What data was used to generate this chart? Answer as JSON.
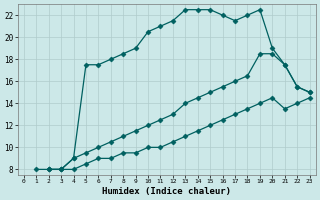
{
  "xlabel": "Humidex (Indice chaleur)",
  "ylabel": "",
  "bg_color": "#cce8e8",
  "grid_color": "#b8d8d8",
  "line_color": "#006060",
  "xlim": [
    -0.5,
    23.5
  ],
  "ylim": [
    7.5,
    23
  ],
  "xticks": [
    0,
    1,
    2,
    3,
    4,
    5,
    6,
    7,
    8,
    9,
    10,
    11,
    12,
    13,
    14,
    15,
    16,
    17,
    18,
    19,
    20,
    21,
    22,
    23
  ],
  "yticks": [
    8,
    10,
    12,
    14,
    16,
    18,
    20,
    22
  ],
  "line1_x": [
    1,
    2,
    3,
    4,
    5,
    6,
    7,
    8,
    9,
    10,
    11,
    12,
    13,
    14,
    15,
    16,
    17,
    18,
    19,
    20,
    21,
    22,
    23
  ],
  "line1_y": [
    8,
    8,
    8,
    9,
    17.5,
    17.5,
    18,
    18.5,
    19,
    20.5,
    21,
    21.5,
    22.5,
    22.5,
    22.5,
    22,
    21.5,
    22,
    22.5,
    19,
    17.5,
    15.5,
    15
  ],
  "line2_x": [
    2,
    3,
    4,
    5,
    6,
    7,
    8,
    9,
    10,
    11,
    12,
    13,
    14,
    15,
    16,
    17,
    18,
    19,
    20,
    21,
    22,
    23
  ],
  "line2_y": [
    8,
    8,
    9,
    9.5,
    10,
    10.5,
    11,
    11.5,
    12,
    12.5,
    13,
    14,
    14.5,
    15,
    15.5,
    16,
    16.5,
    18.5,
    18.5,
    17.5,
    15.5,
    15
  ],
  "line3_x": [
    2,
    3,
    4,
    5,
    6,
    7,
    8,
    9,
    10,
    11,
    12,
    13,
    14,
    15,
    16,
    17,
    18,
    19,
    20,
    21,
    22,
    23
  ],
  "line3_y": [
    8,
    8,
    8,
    8.5,
    9,
    9,
    9.5,
    9.5,
    10,
    10,
    10.5,
    11,
    11.5,
    12,
    12.5,
    13,
    13.5,
    14,
    14.5,
    13.5,
    14,
    14.5
  ]
}
